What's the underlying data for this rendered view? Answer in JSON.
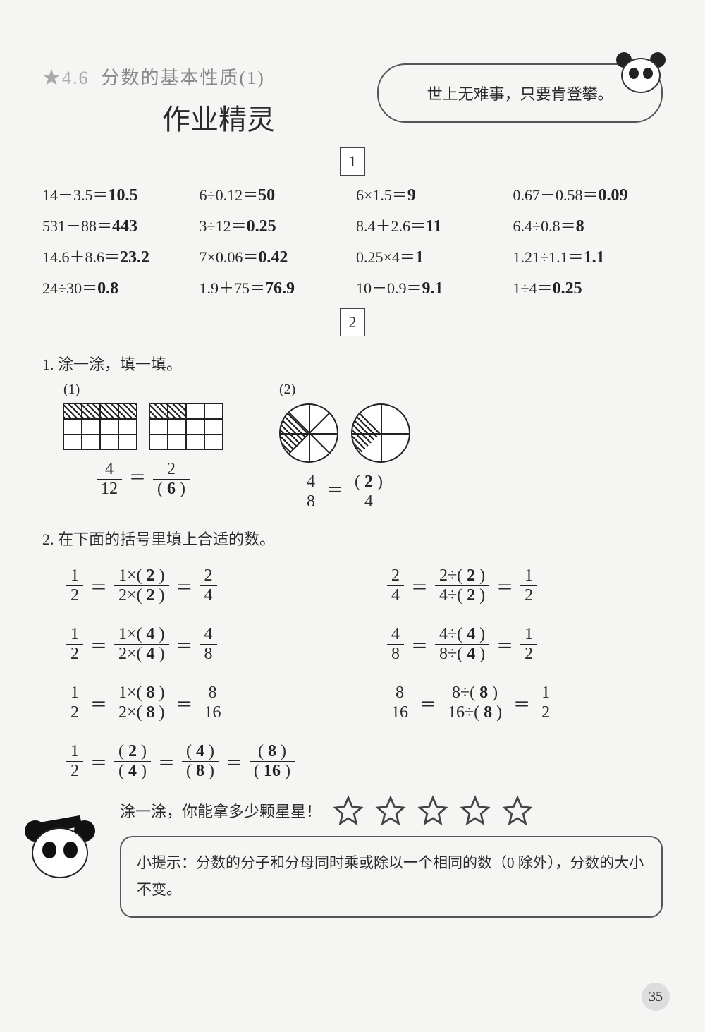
{
  "section_number": "★4.6",
  "section_title": "分数的基本性质(1)",
  "subtitle": "作业精灵",
  "motto": "世上无难事，只要肯登攀。",
  "box1": "1",
  "box2": "2",
  "arithmetic": [
    {
      "expr": "14－3.5＝",
      "ans": "10.5"
    },
    {
      "expr": "6÷0.12＝",
      "ans": "50"
    },
    {
      "expr": "6×1.5＝",
      "ans": "9"
    },
    {
      "expr": "0.67－0.58＝",
      "ans": "0.09"
    },
    {
      "expr": "531－88＝",
      "ans": "443"
    },
    {
      "expr": "3÷12＝",
      "ans": "0.25"
    },
    {
      "expr": "8.4＋2.6＝",
      "ans": "11"
    },
    {
      "expr": "6.4÷0.8＝",
      "ans": "8"
    },
    {
      "expr": "14.6＋8.6＝",
      "ans": "23.2"
    },
    {
      "expr": "7×0.06＝",
      "ans": "0.42"
    },
    {
      "expr": "0.25×4＝",
      "ans": "1"
    },
    {
      "expr": "1.21÷1.1＝",
      "ans": "1.1"
    },
    {
      "expr": "24÷30＝",
      "ans": "0.8"
    },
    {
      "expr": "1.9＋75＝",
      "ans": "76.9"
    },
    {
      "expr": "10－0.9＝",
      "ans": "9.1"
    },
    {
      "expr": "1÷4＝",
      "ans": "0.25"
    }
  ],
  "q1_label": "1. 涂一涂，填一填。",
  "q1_sub1": "(1)",
  "q1_sub2": "(2)",
  "q1_eq1": {
    "ln": "4",
    "ld": "12",
    "rn": "2",
    "rd": "6"
  },
  "q1_eq2": {
    "ln": "4",
    "ld": "8",
    "rn": "2",
    "rd": "4"
  },
  "q2_label": "2. 在下面的括号里填上合适的数。",
  "q2_rows": [
    {
      "l": {
        "a": "1",
        "b": "2",
        "x": "2",
        "y": "2",
        "c": "2",
        "d": "4",
        "op": "×"
      },
      "r": {
        "a": "2",
        "b": "4",
        "x": "2",
        "y": "2",
        "c": "1",
        "d": "2",
        "op": "÷"
      }
    },
    {
      "l": {
        "a": "1",
        "b": "2",
        "x": "4",
        "y": "4",
        "c": "4",
        "d": "8",
        "op": "×"
      },
      "r": {
        "a": "4",
        "b": "8",
        "x": "4",
        "y": "4",
        "c": "1",
        "d": "2",
        "op": "÷"
      }
    },
    {
      "l": {
        "a": "1",
        "b": "2",
        "x": "8",
        "y": "8",
        "c": "8",
        "d": "16",
        "op": "×"
      },
      "r": {
        "a": "8",
        "b": "16",
        "x": "8",
        "y": "8",
        "c": "1",
        "d": "2",
        "op": "÷"
      }
    }
  ],
  "q2_chain": {
    "a": "1",
    "b": "2",
    "p1n": "2",
    "p1d": "4",
    "p2n": "4",
    "p2d": "8",
    "p3n": "8",
    "p3d": "16"
  },
  "star_prompt": "涂一涂，你能拿多少颗星星！",
  "hint_label": "小提示：",
  "hint_text": "分数的分子和分母同时乘或除以一个相同的数（0 除外），分数的大小不变。",
  "page_number": "35",
  "colors": {
    "text": "#2a2a2a",
    "muted": "#888888",
    "bg": "#f5f5f3",
    "border": "#555555"
  },
  "fontsizes": {
    "title": 26,
    "subtitle": 40,
    "body": 22,
    "motto": 22,
    "hint": 21
  }
}
